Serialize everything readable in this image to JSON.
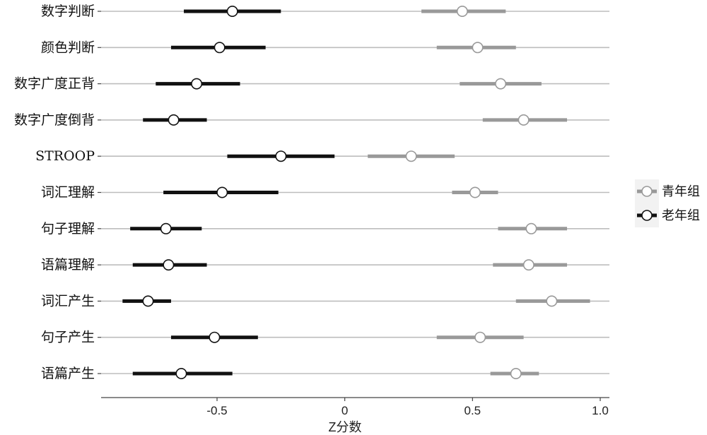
{
  "chart_data": {
    "type": "dot-interval",
    "xlabel": "Z分数",
    "xlim": [
      -0.95,
      1.04
    ],
    "xticks": [
      -0.5,
      0,
      0.5,
      1.0
    ],
    "xtick_labels": [
      "-0.5",
      "0",
      "0.5",
      "1.0"
    ],
    "grid": "horizontal lines per category",
    "legend_placement": "right",
    "categories": [
      "数字判断",
      "颜色判断",
      "数字广度正背",
      "数字广度倒背",
      "STROOP",
      "词汇理解",
      "句子理解",
      "语篇理解",
      "词汇产生",
      "句子产生",
      "语篇产生"
    ],
    "series": [
      {
        "name": "青年组",
        "color": "#999999",
        "values": [
          0.46,
          0.52,
          0.61,
          0.7,
          0.26,
          0.51,
          0.73,
          0.72,
          0.81,
          0.53,
          0.67
        ],
        "lower": [
          0.3,
          0.36,
          0.45,
          0.54,
          0.09,
          0.42,
          0.6,
          0.58,
          0.67,
          0.36,
          0.57
        ],
        "upper": [
          0.63,
          0.67,
          0.77,
          0.87,
          0.43,
          0.6,
          0.87,
          0.87,
          0.96,
          0.7,
          0.76
        ]
      },
      {
        "name": "老年组",
        "color": "#111111",
        "values": [
          -0.44,
          -0.49,
          -0.58,
          -0.67,
          -0.25,
          -0.48,
          -0.7,
          -0.69,
          -0.77,
          -0.51,
          -0.64
        ],
        "lower": [
          -0.63,
          -0.68,
          -0.74,
          -0.79,
          -0.46,
          -0.71,
          -0.84,
          -0.83,
          -0.87,
          -0.68,
          -0.83
        ],
        "upper": [
          -0.25,
          -0.31,
          -0.41,
          -0.54,
          -0.04,
          -0.26,
          -0.56,
          -0.54,
          -0.68,
          -0.34,
          -0.44
        ]
      }
    ]
  }
}
